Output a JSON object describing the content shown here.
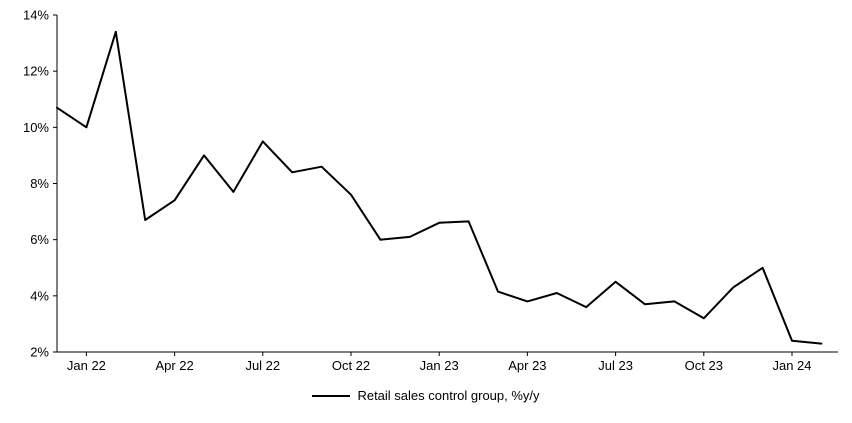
{
  "chart_data": {
    "type": "line",
    "x": [
      "Dec 21",
      "Jan 22",
      "Feb 22",
      "Mar 22",
      "Apr 22",
      "May 22",
      "Jun 22",
      "Jul 22",
      "Aug 22",
      "Sep 22",
      "Oct 22",
      "Nov 22",
      "Dec 22",
      "Jan 23",
      "Feb 23",
      "Mar 23",
      "Apr 23",
      "May 23",
      "Jun 23",
      "Jul 23",
      "Aug 23",
      "Sep 23",
      "Oct 23",
      "Nov 23",
      "Dec 23",
      "Jan 24",
      "Feb 24"
    ],
    "series": [
      {
        "name": "Retail sales control group, %y/y",
        "color": "#000000",
        "values": [
          10.7,
          10.0,
          13.4,
          6.7,
          7.4,
          9.0,
          7.7,
          9.5,
          8.4,
          8.6,
          7.6,
          6.0,
          6.1,
          6.6,
          6.65,
          4.15,
          3.8,
          4.1,
          3.6,
          4.5,
          3.7,
          3.8,
          3.2,
          4.3,
          5.0,
          2.4,
          2.3
        ]
      }
    ],
    "y_axis": {
      "min": 2,
      "max": 14,
      "step": 2,
      "tick_labels": [
        "2%",
        "4%",
        "6%",
        "8%",
        "10%",
        "12%",
        "14%"
      ]
    },
    "x_axis": {
      "tick_labels": [
        "Jan 22",
        "Apr 22",
        "Jul 22",
        "Oct 22",
        "Jan 23",
        "Apr 23",
        "Jul 23",
        "Oct 23",
        "Jan 24"
      ]
    },
    "legend": {
      "position": "bottom",
      "label": "Retail sales control group, %y/y"
    },
    "grid": false,
    "background": "#ffffff",
    "line_color": "#000000"
  }
}
